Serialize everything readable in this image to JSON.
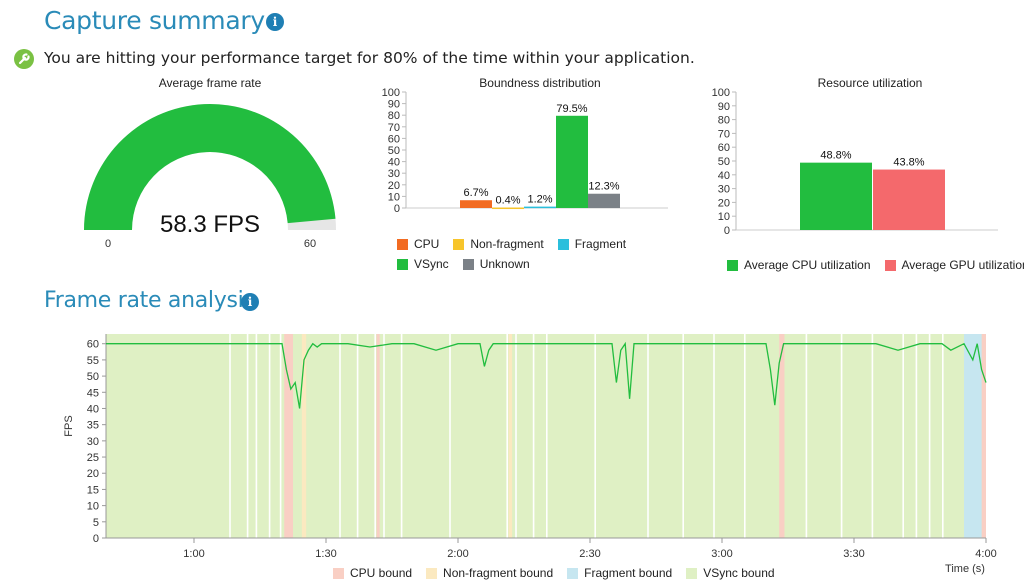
{
  "summary": {
    "title": "Capture summary",
    "info_icon": "i",
    "hint_text": "You are hitting your performance target for 80% of the time within your application."
  },
  "gauge": {
    "title": "Average frame rate",
    "value": 58.3,
    "value_label": "58.3 FPS",
    "min_label": "0",
    "max_label": "60",
    "max": 60,
    "fill_color": "#22bd3f",
    "track_color": "#e6e6e6"
  },
  "analysis": {
    "title": "Frame rate analysis",
    "info_icon": "i"
  },
  "chart_data": [
    {
      "type": "bar",
      "title": "Boundness distribution",
      "categories": [
        "CPU",
        "Non-fragment",
        "Fragment",
        "VSync",
        "Unknown"
      ],
      "values": [
        6.7,
        0.4,
        1.2,
        79.5,
        12.3
      ],
      "value_labels": [
        "6.7%",
        "0.4%",
        "1.2%",
        "79.5%",
        "12.3%"
      ],
      "colors": [
        "#f26b22",
        "#f7c52b",
        "#2bbfdc",
        "#22bd3f",
        "#7b8187"
      ],
      "ylim": [
        0,
        100
      ],
      "yticks": [
        "0",
        "10",
        "20",
        "30",
        "40",
        "50",
        "60",
        "70",
        "80",
        "90",
        "100"
      ],
      "legend": [
        "CPU",
        "Non-fragment",
        "Fragment",
        "VSync",
        "Unknown"
      ]
    },
    {
      "type": "bar",
      "title": "Resource utilization",
      "categories": [
        "Average CPU utilization",
        "Average GPU utilization"
      ],
      "values": [
        48.8,
        43.8
      ],
      "value_labels": [
        "48.8%",
        "43.8%"
      ],
      "colors": [
        "#22bd3f",
        "#f4696c"
      ],
      "ylim": [
        0,
        100
      ],
      "yticks": [
        "0",
        "10",
        "20",
        "30",
        "40",
        "50",
        "60",
        "70",
        "80",
        "90",
        "100"
      ],
      "legend": [
        "Average CPU utilization",
        "Average GPU utilization"
      ]
    },
    {
      "type": "line",
      "title": "",
      "ylabel": "FPS",
      "xlabel": "Time (s)",
      "xlim": [
        40,
        240
      ],
      "ylim": [
        0,
        63
      ],
      "yticks": [
        "0",
        "5",
        "10",
        "15",
        "20",
        "25",
        "30",
        "35",
        "40",
        "45",
        "50",
        "55",
        "60"
      ],
      "xticks": [
        60,
        90,
        120,
        150,
        180,
        210,
        240
      ],
      "xtick_labels": [
        "1:00",
        "1:30",
        "2:00",
        "2:30",
        "3:00",
        "3:30",
        "4:00"
      ],
      "series": [
        {
          "x": [
            40,
            45,
            50,
            55,
            60,
            65,
            70,
            75,
            80,
            81,
            82,
            83,
            84,
            85,
            86,
            87,
            88,
            89,
            90,
            95,
            100,
            105,
            110,
            115,
            120,
            125,
            126,
            127,
            128,
            130,
            135,
            140,
            145,
            150,
            155,
            156,
            157,
            158,
            159,
            160,
            165,
            170,
            175,
            180,
            185,
            190,
            191,
            192,
            193,
            194,
            195,
            200,
            205,
            210,
            215,
            220,
            225,
            230,
            232,
            235,
            237,
            238,
            239,
            240
          ],
          "y": [
            60,
            60,
            60,
            60,
            60,
            60,
            60,
            60,
            60,
            52,
            46,
            48,
            40,
            55,
            58,
            60,
            59,
            60,
            60,
            60,
            59,
            60,
            60,
            58,
            60,
            60,
            53,
            58,
            60,
            60,
            60,
            60,
            60,
            60,
            60,
            48,
            58,
            60,
            43,
            60,
            60,
            60,
            60,
            60,
            60,
            60,
            52,
            41,
            54,
            60,
            60,
            60,
            60,
            60,
            60,
            58,
            60,
            60,
            58,
            60,
            55,
            60,
            52,
            48
          ]
        }
      ],
      "bands": [
        {
          "name": "CPU bound",
          "color": "#f9cfc4"
        },
        {
          "name": "Non-fragment bound",
          "color": "#fbe9c0"
        },
        {
          "name": "Fragment bound",
          "color": "#c6e6f0"
        },
        {
          "name": "VSync bound",
          "color": "#dff0c4"
        }
      ],
      "line_color": "#22bd3f",
      "legend": [
        "CPU bound",
        "Non-fragment bound",
        "Fragment bound",
        "VSync bound"
      ]
    }
  ]
}
